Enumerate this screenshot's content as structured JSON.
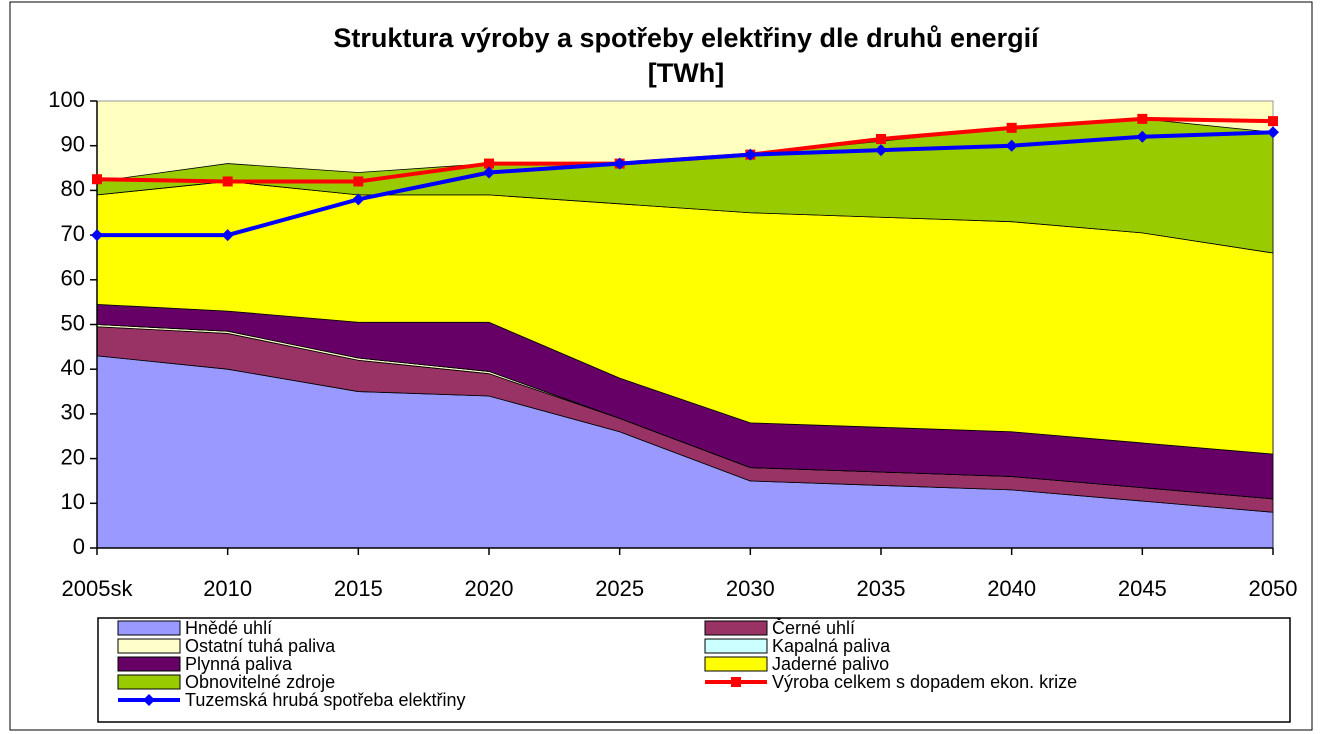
{
  "chart_data": {
    "type": "stacked-area-line",
    "title": "Struktura výroby a spotřeby elektřiny dle druhů energií",
    "subtitle": "[TWh]",
    "categories": [
      "2005sk",
      "2010",
      "2015",
      "2020",
      "2025",
      "2030",
      "2035",
      "2040",
      "2045",
      "2050"
    ],
    "ylim": [
      0,
      100
    ],
    "yticks": [
      0,
      10,
      20,
      30,
      40,
      50,
      60,
      70,
      80,
      90,
      100
    ],
    "grid": false,
    "plot_background": "#ffffc0",
    "series": [
      {
        "name": "Hnědé uhlí",
        "color": "#9999ff",
        "kind": "area",
        "values": [
          43,
          40,
          35,
          34,
          26,
          15,
          14,
          13,
          10.5,
          8
        ]
      },
      {
        "name": "Černé uhlí",
        "color": "#993366",
        "kind": "area",
        "values": [
          6.5,
          8,
          7,
          5,
          3,
          3,
          3,
          3,
          3,
          3
        ]
      },
      {
        "name": "Ostatní tuhá paliva",
        "color": "#ffffcc",
        "kind": "area",
        "values": [
          0.5,
          0.5,
          0.5,
          0.5,
          0,
          0,
          0,
          0,
          0,
          0
        ]
      },
      {
        "name": "Kapalná paliva",
        "color": "#ccffff",
        "kind": "area",
        "values": [
          0,
          0,
          0,
          0,
          0,
          0,
          0,
          0,
          0,
          0
        ]
      },
      {
        "name": "Plynná paliva",
        "color": "#660066",
        "kind": "area",
        "values": [
          4.5,
          4.5,
          8,
          11,
          9,
          10,
          10,
          10,
          10,
          10
        ]
      },
      {
        "name": "Jaderné palivo",
        "color": "#ffff00",
        "kind": "area",
        "values": [
          24.5,
          29,
          28.5,
          28.5,
          39,
          47,
          47,
          47,
          47,
          45
        ]
      },
      {
        "name": "Obnovitelné zdroje",
        "color": "#99cc00",
        "kind": "area",
        "values": [
          3,
          4,
          5,
          7,
          9,
          13,
          17,
          21,
          25.5,
          27
        ]
      },
      {
        "name": "Výroba celkem s dopadem ekon. krize",
        "color": "#ff0000",
        "kind": "line",
        "marker": "square",
        "values": [
          82.5,
          82,
          82,
          86,
          86,
          88,
          91.5,
          94,
          96,
          95.5
        ]
      },
      {
        "name": "Tuzemská hrubá spotřeba elektřiny",
        "color": "#0000ff",
        "kind": "line",
        "marker": "diamond",
        "values": [
          70,
          70,
          78,
          84,
          86,
          88,
          89,
          90,
          92,
          93
        ]
      }
    ]
  }
}
